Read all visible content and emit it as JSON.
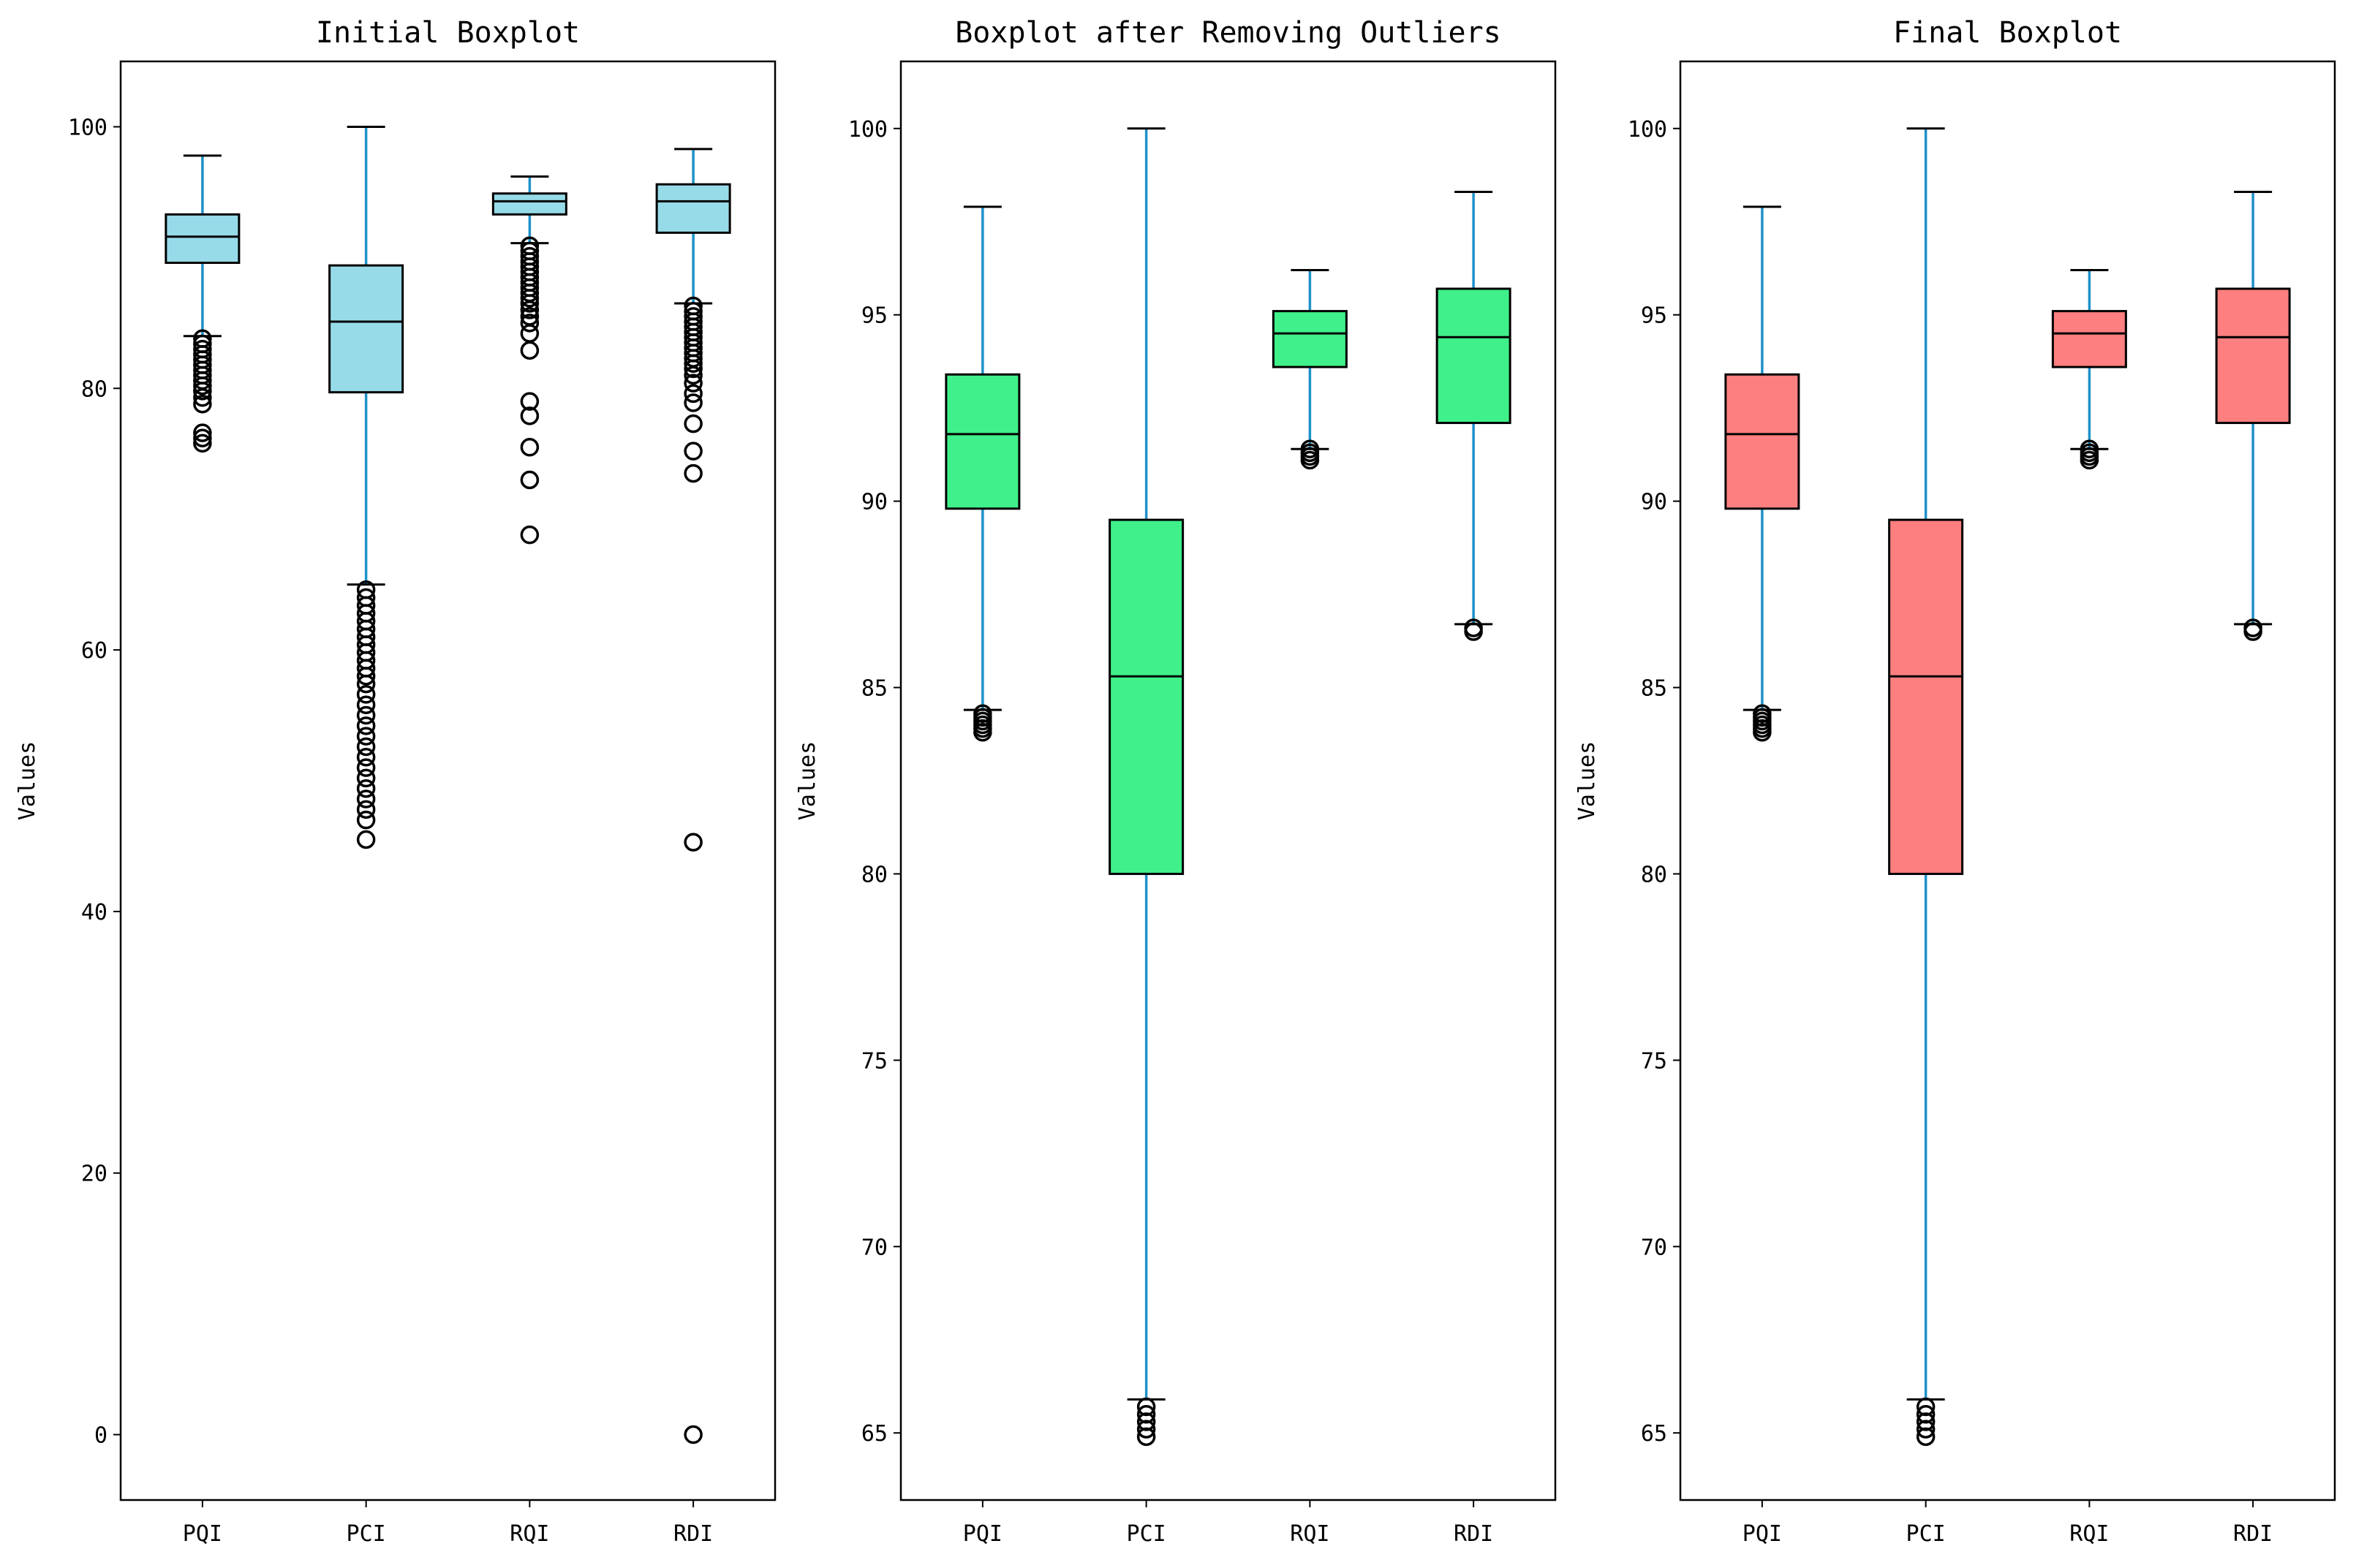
{
  "chart_data": [
    {
      "type": "boxplot",
      "title": "Initial Boxplot",
      "ylabel": "Values",
      "xlabel": "",
      "categories": [
        "PQI",
        "PCI",
        "RQI",
        "RDI"
      ],
      "ylim": [
        -5,
        105
      ],
      "yticks": [
        0,
        20,
        40,
        60,
        80,
        100
      ],
      "box_color": "#97dbe8",
      "whisker_color": "#1f91c9",
      "boxes": [
        {
          "label": "PQI",
          "whislo": 84.0,
          "q1": 89.6,
          "median": 91.6,
          "q3": 93.3,
          "whishi": 97.8,
          "fliers": [
            83.8,
            83.4,
            83.0,
            82.6,
            82.2,
            81.8,
            81.4,
            81.0,
            80.6,
            80.2,
            79.8,
            79.3,
            78.8,
            76.6,
            76.2,
            75.8
          ]
        },
        {
          "label": "PCI",
          "whislo": 65.0,
          "q1": 79.7,
          "median": 85.1,
          "q3": 89.4,
          "whishi": 100.0,
          "fliers": [
            64.6,
            64.0,
            63.4,
            62.8,
            62.2,
            61.6,
            61.0,
            60.4,
            59.8,
            59.2,
            58.6,
            58.0,
            57.4,
            56.6,
            55.8,
            55.0,
            54.2,
            53.4,
            52.6,
            51.8,
            51.0,
            50.2,
            49.4,
            48.6,
            47.8,
            47.0,
            45.5
          ]
        },
        {
          "label": "RQI",
          "whislo": 91.1,
          "q1": 93.3,
          "median": 94.3,
          "q3": 94.9,
          "whishi": 96.2,
          "fliers": [
            90.9,
            90.5,
            90.1,
            89.7,
            89.3,
            88.9,
            88.5,
            88.1,
            87.7,
            87.3,
            86.9,
            86.5,
            86.0,
            85.5,
            85.0,
            84.2,
            82.9,
            79.0,
            77.9,
            75.5,
            73.0,
            68.8
          ]
        },
        {
          "label": "RDI",
          "whislo": 86.5,
          "q1": 91.9,
          "median": 94.3,
          "q3": 95.6,
          "whishi": 98.3,
          "fliers": [
            86.3,
            85.9,
            85.5,
            85.1,
            84.7,
            84.3,
            83.9,
            83.5,
            83.1,
            82.7,
            82.3,
            81.9,
            81.5,
            81.0,
            80.4,
            79.6,
            78.9,
            77.3,
            75.2,
            73.5,
            45.3,
            0.0
          ]
        }
      ]
    },
    {
      "type": "boxplot",
      "title": "Boxplot after Removing Outliers",
      "ylabel": "Values",
      "xlabel": "",
      "categories": [
        "PQI",
        "PCI",
        "RQI",
        "RDI"
      ],
      "ylim": [
        63.2,
        101.8
      ],
      "yticks": [
        65,
        70,
        75,
        80,
        85,
        90,
        95,
        100
      ],
      "box_color": "#40f08a",
      "whisker_color": "#1f91c9",
      "boxes": [
        {
          "label": "PQI",
          "whislo": 84.4,
          "q1": 89.8,
          "median": 91.8,
          "q3": 93.4,
          "whishi": 97.9,
          "fliers": [
            84.3,
            84.2,
            84.1,
            84.0,
            83.9,
            83.8
          ]
        },
        {
          "label": "PCI",
          "whislo": 65.9,
          "q1": 80.0,
          "median": 85.3,
          "q3": 89.5,
          "whishi": 100.0,
          "fliers": [
            65.7,
            65.5,
            65.3,
            65.1,
            64.9
          ]
        },
        {
          "label": "RQI",
          "whislo": 91.4,
          "q1": 93.6,
          "median": 94.5,
          "q3": 95.1,
          "whishi": 96.2,
          "fliers": [
            91.4,
            91.3,
            91.2,
            91.1
          ]
        },
        {
          "label": "RDI",
          "whislo": 86.7,
          "q1": 92.1,
          "median": 94.4,
          "q3": 95.7,
          "whishi": 98.3,
          "fliers": [
            86.6,
            86.5
          ]
        }
      ]
    },
    {
      "type": "boxplot",
      "title": "Final Boxplot",
      "ylabel": "Values",
      "xlabel": "",
      "categories": [
        "PQI",
        "PCI",
        "RQI",
        "RDI"
      ],
      "ylim": [
        63.2,
        101.8
      ],
      "yticks": [
        65,
        70,
        75,
        80,
        85,
        90,
        95,
        100
      ],
      "box_color": "#fd7f7f",
      "whisker_color": "#1f91c9",
      "boxes": [
        {
          "label": "PQI",
          "whislo": 84.4,
          "q1": 89.8,
          "median": 91.8,
          "q3": 93.4,
          "whishi": 97.9,
          "fliers": [
            84.3,
            84.2,
            84.1,
            84.0,
            83.9,
            83.8
          ]
        },
        {
          "label": "PCI",
          "whislo": 65.9,
          "q1": 80.0,
          "median": 85.3,
          "q3": 89.5,
          "whishi": 100.0,
          "fliers": [
            65.7,
            65.5,
            65.3,
            65.1,
            64.9
          ]
        },
        {
          "label": "RQI",
          "whislo": 91.4,
          "q1": 93.6,
          "median": 94.5,
          "q3": 95.1,
          "whishi": 96.2,
          "fliers": [
            91.4,
            91.3,
            91.2,
            91.1
          ]
        },
        {
          "label": "RDI",
          "whislo": 86.7,
          "q1": 92.1,
          "median": 94.4,
          "q3": 95.7,
          "whishi": 98.3,
          "fliers": [
            86.6,
            86.5
          ]
        }
      ]
    }
  ]
}
